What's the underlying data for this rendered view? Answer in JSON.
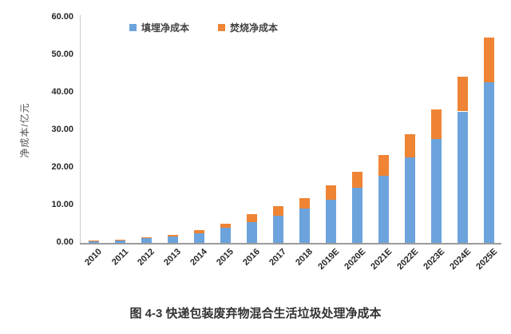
{
  "figure": {
    "caption": "图 4-3 快递包装废弃物混合生活垃圾处理净成本"
  },
  "chart_data": {
    "type": "bar",
    "stacked": true,
    "title": "",
    "xlabel": "",
    "ylabel": "净成本/亿元",
    "ylim": [
      0,
      60
    ],
    "ytick_step": 10,
    "yticks": [
      "0.00",
      "10.00",
      "20.00",
      "30.00",
      "40.00",
      "50.00",
      "60.00"
    ],
    "grid": false,
    "legend_position": "top",
    "categories": [
      "2010",
      "2011",
      "2012",
      "2013",
      "2014",
      "2015",
      "2016",
      "2017",
      "2018",
      "2019E",
      "2020E",
      "2021E",
      "2022E",
      "2023E",
      "2024E",
      "2025E"
    ],
    "series": [
      {
        "name": "填埋净成本",
        "color": "#6CA3DC",
        "values": [
          0.6,
          0.8,
          1.3,
          1.7,
          2.6,
          4.1,
          5.6,
          7.3,
          9.2,
          11.5,
          14.7,
          17.9,
          22.8,
          27.7,
          35.0,
          42.8
        ]
      },
      {
        "name": "焚烧净成本",
        "color": "#EE8434",
        "values": [
          0.1,
          0.1,
          0.2,
          0.4,
          0.8,
          1.0,
          2.0,
          2.4,
          2.8,
          3.8,
          4.2,
          5.5,
          6.1,
          7.8,
          9.3,
          11.9
        ]
      }
    ]
  }
}
